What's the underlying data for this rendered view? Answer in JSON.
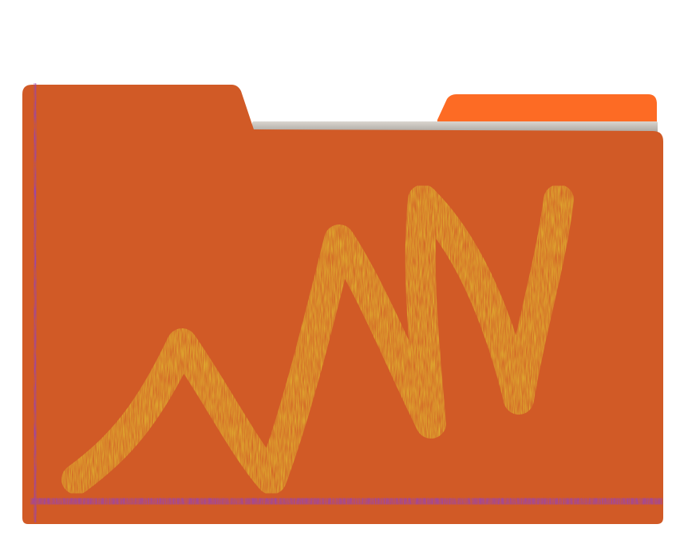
{
  "icon": {
    "name": "folder-icon",
    "colors": {
      "folder_front": "#d15a26",
      "folder_back_tab": "#fd6b24",
      "paper": "#c9c4bd",
      "paper_edge": "#9a9690",
      "crayon_axis": "#9a44ac",
      "crayon_axis_dark": "#7c328f",
      "crayon_line": "#dfae2f",
      "crayon_line_dark": "#b98d1f"
    }
  }
}
